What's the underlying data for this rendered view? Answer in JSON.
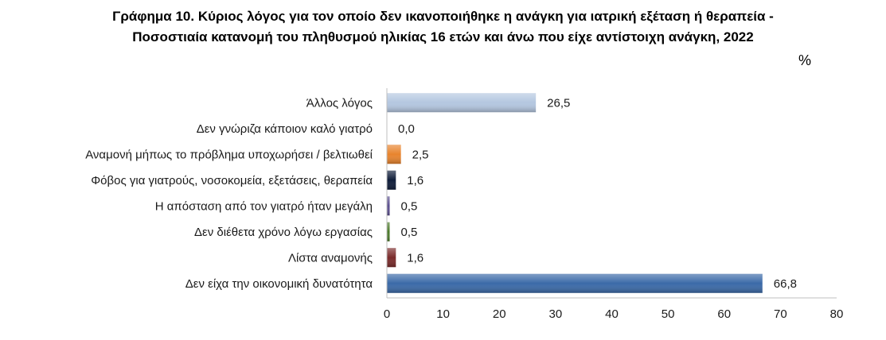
{
  "title_line1": "Γράφημα 10. Κύριος λόγος για τον οποίο δεν ικανοποιήθηκε η ανάγκη για ιατρική εξέταση ή θεραπεία -",
  "title_line2": "Ποσοστιαία κατανομή του πληθυσμού ηλικίας 16 ετών και άνω που είχε αντίστοιχη ανάγκη, 2022",
  "unit": "%",
  "chart_data": {
    "type": "bar",
    "orientation": "horizontal",
    "title": "Γράφημα 10. Κύριος λόγος για τον οποίο δεν ικανοποιήθηκε η ανάγκη για ιατρική εξέταση ή θεραπεία - Ποσοστιαία κατανομή του πληθυσμού ηλικίας 16 ετών και άνω που είχε αντίστοιχη ανάγκη, 2022",
    "unit": "%",
    "categories": [
      "Άλλος λόγος",
      "Δεν γνώριζα κάποιον καλό γιατρό",
      "Αναμονή μήπως το πρόβλημα υποχωρήσει / βελτιωθεί",
      "Φόβος για γιατρούς, νοσοκομεία, εξετάσεις, θεραπεία",
      "Η απόσταση από τον γιατρό ήταν μεγάλη",
      "Δεν διέθετα χρόνο λόγω εργασίας",
      "Λίστα αναμονής",
      "Δεν είχα την οικονομική δυνατότητα"
    ],
    "values": [
      26.5,
      0.0,
      2.5,
      1.6,
      0.5,
      0.5,
      1.6,
      66.8
    ],
    "value_labels": [
      "26,5",
      "0,0",
      "2,5",
      "1,6",
      "0,5",
      "0,5",
      "1,6",
      "66,8"
    ],
    "colors": [
      "#b4c7e0",
      "#9db7d9",
      "#e8842e",
      "#0f1d3a",
      "#5b4f8f",
      "#4c7a2a",
      "#7a2b2b",
      "#3b6aa8"
    ],
    "xlim": [
      0,
      80
    ],
    "xticks": [
      "0",
      "10",
      "20",
      "30",
      "40",
      "50",
      "60",
      "70",
      "80"
    ],
    "grid": false,
    "legend": "none"
  }
}
